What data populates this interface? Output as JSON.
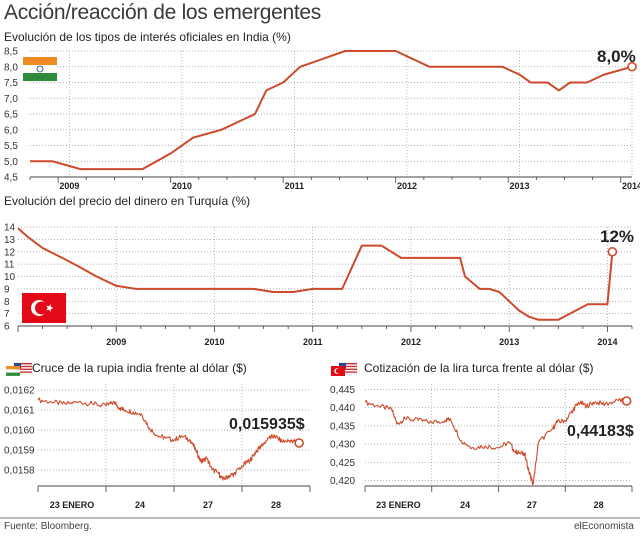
{
  "title": "Acción/reacción de los emergentes",
  "source": "Fuente: Bloomberg.",
  "brand": "elEconomista",
  "colors": {
    "line": "#cc4a2a",
    "grid": "#9a9a9a",
    "flag_india": [
      "#f08a24",
      "#ffffff",
      "#2f8a3c"
    ],
    "flag_turkey": "#e30a17"
  },
  "chart_data": [
    {
      "id": "india",
      "type": "line",
      "title": "Evolución de los tipos de interés oficiales en India (%)",
      "yticks": [
        "8,5",
        "8,0",
        "7,5",
        "7,0",
        "6,5",
        "6,0",
        "5,5",
        "5,0",
        "4,5"
      ],
      "ytick_values": [
        8.5,
        8.0,
        7.5,
        7.0,
        6.5,
        6.0,
        5.5,
        5.0,
        4.5
      ],
      "ylim": [
        4.5,
        8.5
      ],
      "xlim": [
        2008.75,
        2014.1
      ],
      "xticks": [
        "2009",
        "2010",
        "2011",
        "2012",
        "2013",
        "2014"
      ],
      "xtick_values": [
        2009.1,
        2010.1,
        2011.1,
        2012.1,
        2013.1,
        2014.1
      ],
      "annotation": "8,0%",
      "x": [
        2008.75,
        2008.95,
        2009.2,
        2009.5,
        2009.75,
        2010.0,
        2010.2,
        2010.45,
        2010.6,
        2010.75,
        2010.85,
        2011.0,
        2011.15,
        2011.35,
        2011.55,
        2011.8,
        2012.0,
        2012.3,
        2012.5,
        2012.7,
        2012.95,
        2013.1,
        2013.2,
        2013.35,
        2013.45,
        2013.55,
        2013.7,
        2013.85,
        2014.1
      ],
      "y": [
        5.0,
        5.0,
        4.75,
        4.75,
        4.75,
        5.25,
        5.75,
        6.0,
        6.25,
        6.5,
        7.25,
        7.5,
        8.0,
        8.25,
        8.5,
        8.5,
        8.5,
        8.0,
        8.0,
        8.0,
        8.0,
        7.75,
        7.5,
        7.5,
        7.25,
        7.5,
        7.5,
        7.75,
        8.0
      ]
    },
    {
      "id": "turquia",
      "type": "line",
      "title": "Evolución del precio del dinero en Turquía (%)",
      "yticks": [
        "14",
        "13",
        "12",
        "11",
        "10",
        "9",
        "8",
        "7",
        "6"
      ],
      "ytick_values": [
        14,
        13,
        12,
        11,
        10,
        9,
        8,
        7,
        6
      ],
      "ylim": [
        6,
        14
      ],
      "xlim": [
        2008.0,
        2014.25
      ],
      "xticks": [
        "2009",
        "2010",
        "2011",
        "2012",
        "2013",
        "2014"
      ],
      "xtick_values": [
        2009.0,
        2010.0,
        2011.0,
        2012.0,
        2013.0,
        2014.0
      ],
      "annotation": "12%",
      "x": [
        2008.0,
        2008.1,
        2008.25,
        2008.45,
        2008.62,
        2008.8,
        2009.0,
        2009.2,
        2009.4,
        2009.7,
        2009.9,
        2010.0,
        2010.2,
        2010.4,
        2010.6,
        2010.8,
        2011.0,
        2011.2,
        2011.3,
        2011.5,
        2011.6,
        2011.7,
        2011.9,
        2012.2,
        2012.3,
        2012.4,
        2012.5,
        2012.55,
        2012.7,
        2012.8,
        2012.9,
        2013.0,
        2013.1,
        2013.2,
        2013.3,
        2013.5,
        2013.8,
        2013.9,
        2014.0,
        2014.05
      ],
      "y": [
        13.9,
        13.2,
        12.3,
        11.5,
        10.8,
        10.0,
        9.25,
        9.0,
        9.0,
        9.0,
        9.0,
        9.0,
        9.0,
        9.0,
        8.75,
        8.75,
        9.0,
        9.0,
        9.0,
        12.5,
        12.5,
        12.5,
        11.5,
        11.5,
        11.5,
        11.5,
        11.5,
        10.0,
        9.0,
        9.0,
        8.75,
        8.0,
        7.25,
        6.75,
        6.5,
        6.5,
        7.75,
        7.75,
        7.75,
        12.0
      ]
    },
    {
      "id": "rupia",
      "type": "line",
      "title": "Cruce de la rupia india frente al dólar ($)",
      "yticks": [
        "0,0162",
        "0,0161",
        "0,0160",
        "0,0159",
        "0,0158"
      ],
      "ytick_values": [
        0.0162,
        0.0161,
        0.016,
        0.0159,
        0.0158
      ],
      "ylim": [
        0.01572,
        0.01623
      ],
      "xlim": [
        0.0,
        1.0
      ],
      "xticks": [
        "23 ENERO",
        "24",
        "27",
        "28"
      ],
      "xtick_values": [
        0.125,
        0.375,
        0.625,
        0.875
      ],
      "annotation": "0,015935$",
      "x": [
        0.0,
        0.05,
        0.1,
        0.15,
        0.2,
        0.25,
        0.28,
        0.3,
        0.32,
        0.35,
        0.38,
        0.41,
        0.44,
        0.47,
        0.5,
        0.53,
        0.56,
        0.58,
        0.6,
        0.62,
        0.64,
        0.66,
        0.68,
        0.7,
        0.72,
        0.75,
        0.78,
        0.8,
        0.82,
        0.85,
        0.87,
        0.9,
        0.93,
        0.96
      ],
      "y": [
        0.01615,
        0.01614,
        0.01613,
        0.01614,
        0.01613,
        0.01612,
        0.01614,
        0.01611,
        0.0161,
        0.01609,
        0.01608,
        0.01601,
        0.01597,
        0.01596,
        0.01595,
        0.01597,
        0.01595,
        0.0159,
        0.01584,
        0.01586,
        0.0158,
        0.01579,
        0.01575,
        0.01577,
        0.01578,
        0.01582,
        0.01585,
        0.01589,
        0.01592,
        0.01596,
        0.01597,
        0.01594,
        0.01595,
        0.015935
      ]
    },
    {
      "id": "lira",
      "type": "line",
      "title": "Cotización de la lira turca frente al dólar ($)",
      "yticks": [
        "0,445",
        "0,440",
        "0,435",
        "0,430",
        "0,425",
        "0,420"
      ],
      "ytick_values": [
        0.445,
        0.44,
        0.435,
        0.43,
        0.425,
        0.42
      ],
      "ylim": [
        0.4185,
        0.4465
      ],
      "xlim": [
        0.0,
        1.0
      ],
      "xticks": [
        "23 ENERO",
        "24",
        "27",
        "28"
      ],
      "xtick_values": [
        0.125,
        0.375,
        0.625,
        0.875
      ],
      "annotation": "0,44183$",
      "x": [
        0.0,
        0.05,
        0.1,
        0.12,
        0.15,
        0.2,
        0.25,
        0.3,
        0.32,
        0.36,
        0.4,
        0.45,
        0.5,
        0.54,
        0.56,
        0.58,
        0.6,
        0.6,
        0.62,
        0.63,
        0.65,
        0.7,
        0.72,
        0.75,
        0.78,
        0.8,
        0.83,
        0.86,
        0.9,
        0.95,
        0.98
      ],
      "y": [
        0.4415,
        0.4405,
        0.4395,
        0.4355,
        0.437,
        0.4365,
        0.436,
        0.4365,
        0.437,
        0.431,
        0.429,
        0.4295,
        0.429,
        0.4305,
        0.428,
        0.4275,
        0.4275,
        0.4265,
        0.421,
        0.419,
        0.4305,
        0.434,
        0.436,
        0.4365,
        0.4395,
        0.4415,
        0.4405,
        0.4415,
        0.441,
        0.442,
        0.44183
      ]
    }
  ]
}
